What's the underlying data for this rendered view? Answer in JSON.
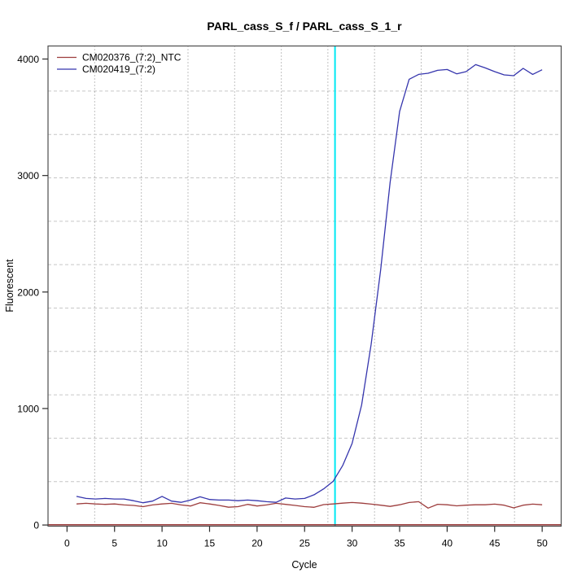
{
  "figure": {
    "background": "#ffffff"
  },
  "chart_data": {
    "type": "line",
    "title": "PARL_cass_S_f / PARL_cass_S_1_r",
    "xlabel": "Cycle",
    "ylabel": "Fluorescent",
    "xlim": [
      -2,
      52
    ],
    "ylim": [
      -10,
      4112
    ],
    "x_ticks": [
      0,
      5,
      10,
      15,
      20,
      25,
      30,
      35,
      40,
      45,
      50
    ],
    "y_ticks": [
      0,
      1000,
      2000,
      3000,
      4000
    ],
    "grid": {
      "h_values": [
        372.5,
        745,
        1117.5,
        1490,
        1862.5,
        2235,
        2607.5,
        2980,
        3352.5,
        3725
      ],
      "v_values": [
        2.91,
        7.82,
        12.73,
        17.64,
        22.55,
        27.45,
        32.36,
        37.27,
        42.18,
        47.09
      ],
      "h_style": "dashed",
      "h_color": "#c6c6c6",
      "v_style": "dotted",
      "v_color": "#828282"
    },
    "threshold_line": {
      "x": 28.2,
      "color": "#00e8f2"
    },
    "zero_line": {
      "y": 2,
      "color": "#8b1f1f"
    },
    "legend": {
      "position": "top-left",
      "box": false
    },
    "x": [
      1,
      2,
      3,
      4,
      5,
      6,
      7,
      8,
      9,
      10,
      11,
      12,
      13,
      14,
      15,
      16,
      17,
      18,
      19,
      20,
      21,
      22,
      23,
      24,
      25,
      26,
      27,
      28,
      29,
      30,
      31,
      32,
      33,
      34,
      35,
      36,
      37,
      38,
      39,
      40,
      41,
      42,
      43,
      44,
      45,
      46,
      47,
      48,
      49,
      50
    ],
    "series": [
      {
        "name": "CM020376_(7:2)_NTC",
        "color": "#9d3d3d",
        "values": [
          181,
          186,
          181,
          177,
          181,
          172,
          168,
          158,
          172,
          181,
          186,
          172,
          163,
          191,
          181,
          168,
          153,
          158,
          177,
          163,
          172,
          186,
          177,
          168,
          158,
          152,
          175,
          181,
          188,
          193,
          188,
          179,
          170,
          160,
          174,
          193,
          200,
          145,
          178,
          174,
          165,
          170,
          174,
          174,
          179,
          170,
          147,
          170,
          179,
          174
        ]
      },
      {
        "name": "CM020419_(7:2)",
        "color": "#3535ad",
        "values": [
          246,
          228,
          223,
          228,
          223,
          223,
          209,
          191,
          205,
          246,
          205,
          195,
          214,
          242,
          219,
          214,
          214,
          209,
          214,
          209,
          200,
          195,
          232,
          223,
          228,
          260,
          310,
          375,
          510,
          700,
          1030,
          1550,
          2190,
          2940,
          3550,
          3826,
          3868,
          3878,
          3903,
          3910,
          3873,
          3892,
          3952,
          3924,
          3892,
          3864,
          3857,
          3920,
          3868,
          3908
        ]
      }
    ],
    "style": {
      "box_color": "#4d4d4d",
      "tick_color": "#2b2b2b",
      "line_width": 1.3
    }
  }
}
